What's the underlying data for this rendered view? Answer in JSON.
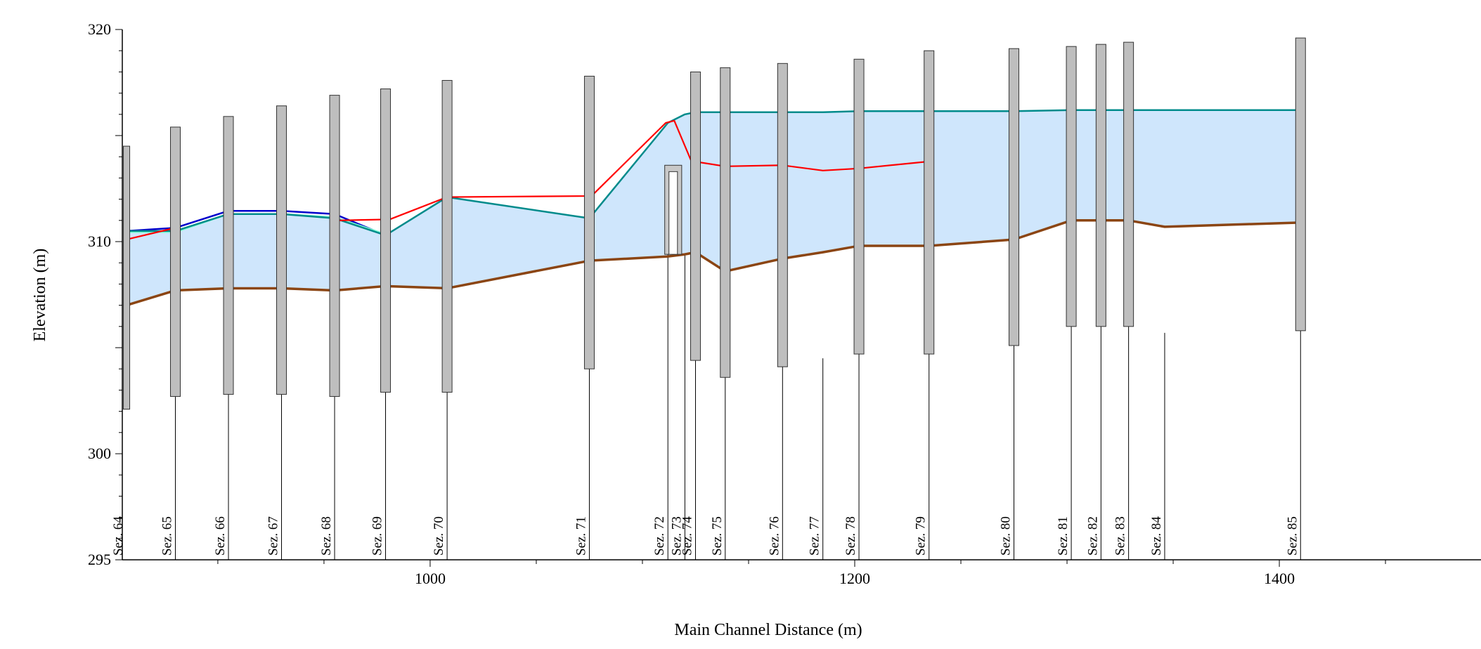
{
  "chart_data": {
    "type": "line",
    "title": "",
    "xlabel": "Main Channel Distance (m)",
    "ylabel": "Elevation (m)",
    "xlim": [
      855,
      1495
    ],
    "ylim": [
      295,
      320
    ],
    "x_ticks": [
      1000,
      1200,
      1400
    ],
    "y_ticks": [
      295,
      300,
      310,
      320
    ],
    "grid": false,
    "legend": "none",
    "colors": {
      "water_fill": "#cfe6fc",
      "bed": "#8b4513",
      "red_profile": "#ff0000",
      "blue_profile": "#0000cc",
      "light_green_profile": "#7fffd4",
      "teal_profile": "#008b8b",
      "bank_bar": "#bebebe",
      "bank_bar_edge": "#333333"
    },
    "sections": [
      {
        "name": "Sez. 64",
        "x": 857,
        "top": 314.5,
        "bottom": 302.1,
        "line_bottom": 302.1
      },
      {
        "name": "Sez. 65",
        "x": 880,
        "top": 315.4,
        "bottom": 302.7,
        "line_bottom": 295
      },
      {
        "name": "Sez. 66",
        "x": 905,
        "top": 315.9,
        "bottom": 302.8,
        "line_bottom": 295
      },
      {
        "name": "Sez. 67",
        "x": 930,
        "top": 316.4,
        "bottom": 302.8,
        "line_bottom": 295
      },
      {
        "name": "Sez. 68",
        "x": 955,
        "top": 316.9,
        "bottom": 302.7,
        "line_bottom": 295
      },
      {
        "name": "Sez. 69",
        "x": 979,
        "top": 317.2,
        "bottom": 302.9,
        "line_bottom": 295
      },
      {
        "name": "Sez. 70",
        "x": 1008,
        "top": 317.6,
        "bottom": 302.9,
        "line_bottom": 295
      },
      {
        "name": "Sez. 71",
        "x": 1075,
        "top": 317.8,
        "bottom": 304.0,
        "line_bottom": 295
      },
      {
        "name": "Sez. 72",
        "x": 1112,
        "top": null,
        "bottom": null,
        "line_bottom": 295
      },
      {
        "name": "Sez. 73",
        "x": 1120,
        "top": null,
        "bottom": null,
        "line_bottom": 295
      },
      {
        "name": "Sez. 74",
        "x": 1125,
        "top": 318.0,
        "bottom": 304.4,
        "line_bottom": 295
      },
      {
        "name": "Sez. 75",
        "x": 1139,
        "top": 318.2,
        "bottom": 303.6,
        "line_bottom": 295
      },
      {
        "name": "Sez. 76",
        "x": 1166,
        "top": 318.4,
        "bottom": 304.1,
        "line_bottom": 295
      },
      {
        "name": "Sez. 77",
        "x": 1185,
        "top": null,
        "bottom": null,
        "line_bottom": 295
      },
      {
        "name": "Sez. 78",
        "x": 1202,
        "top": 318.6,
        "bottom": 304.7,
        "line_bottom": 295
      },
      {
        "name": "Sez. 79",
        "x": 1235,
        "top": 319.0,
        "bottom": 304.7,
        "line_bottom": 295
      },
      {
        "name": "Sez. 80",
        "x": 1275,
        "top": 319.1,
        "bottom": 305.1,
        "line_bottom": 295
      },
      {
        "name": "Sez. 81",
        "x": 1302,
        "top": 319.2,
        "bottom": 306.0,
        "line_bottom": 295
      },
      {
        "name": "Sez. 82",
        "x": 1316,
        "top": 319.3,
        "bottom": 306.0,
        "line_bottom": 295
      },
      {
        "name": "Sez. 83",
        "x": 1329,
        "top": 319.4,
        "bottom": 306.0,
        "line_bottom": 295
      },
      {
        "name": "Sez. 84",
        "x": 1346,
        "top": null,
        "bottom": null,
        "line_bottom": 295
      },
      {
        "name": "Sez. 85",
        "x": 1410,
        "top": 319.6,
        "bottom": 305.8,
        "line_bottom": 295
      }
    ],
    "structure": {
      "outer": {
        "x1": 1110.5,
        "x2": 1118.5,
        "top": 313.6,
        "bottom": 309.4
      },
      "inner": {
        "x1": 1112.5,
        "x2": 1116.5,
        "top": 313.3,
        "bottom": 309.4
      }
    },
    "series": [
      {
        "key": "bed",
        "x": [
          857,
          880,
          905,
          930,
          955,
          979,
          1008,
          1075,
          1112,
          1120,
          1125,
          1139,
          1166,
          1185,
          1202,
          1235,
          1275,
          1302,
          1316,
          1329,
          1346,
          1410
        ],
        "y": [
          307.0,
          307.7,
          307.8,
          307.8,
          307.7,
          307.9,
          307.8,
          309.1,
          309.3,
          309.4,
          309.5,
          308.6,
          309.2,
          309.5,
          309.8,
          309.8,
          310.1,
          311.0,
          311.0,
          311.0,
          310.7,
          310.9
        ]
      },
      {
        "key": "water_surface",
        "x": [
          857,
          880,
          905,
          930,
          955,
          979,
          1008,
          1075,
          1112,
          1120,
          1125,
          1139,
          1166,
          1185,
          1202,
          1235,
          1275,
          1302,
          1316,
          1329,
          1346,
          1410
        ],
        "y": [
          310.5,
          310.5,
          311.3,
          311.3,
          311.1,
          310.3,
          312.1,
          311.1,
          315.6,
          316.0,
          316.1,
          316.1,
          316.1,
          316.1,
          316.15,
          316.15,
          316.15,
          316.2,
          316.2,
          316.2,
          316.2,
          316.2
        ]
      },
      {
        "key": "blue_profile",
        "x": [
          857,
          880,
          905,
          930,
          955,
          979
        ],
        "y": [
          310.5,
          310.65,
          311.45,
          311.45,
          311.3,
          310.3
        ]
      },
      {
        "key": "light_green_profile",
        "x": [
          857,
          880,
          905,
          930,
          955,
          979
        ],
        "y": [
          310.45,
          310.45,
          311.3,
          311.3,
          311.15,
          310.35
        ]
      },
      {
        "key": "red_profile",
        "x": [
          857,
          880
        ],
        "y": [
          310.1,
          310.65
        ]
      },
      {
        "key": "red_profile",
        "x": [
          957,
          981,
          1008,
          1076,
          1111,
          1115,
          1123,
          1139,
          1166,
          1185,
          1202,
          1237
        ],
        "y": [
          311.0,
          311.05,
          312.1,
          312.15,
          315.6,
          315.7,
          313.8,
          313.55,
          313.6,
          313.35,
          313.45,
          313.8
        ]
      }
    ]
  }
}
